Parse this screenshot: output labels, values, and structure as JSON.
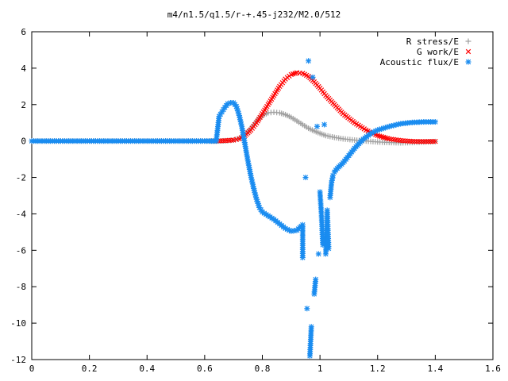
{
  "chart_data": {
    "type": "scatter",
    "title": "m4/n1.5/q1.5/r-+.45-j232/M2.0/512",
    "xlabel": "",
    "ylabel": "",
    "xlim": [
      0,
      1.6
    ],
    "ylim": [
      -12,
      6
    ],
    "x_ticks": [
      "0",
      "0.2",
      "0.4",
      "0.6",
      "0.8",
      "1",
      "1.2",
      "1.4",
      "1.6"
    ],
    "y_ticks": [
      "6",
      "4",
      "2",
      "0",
      "-2",
      "-4",
      "-6",
      "-8",
      "-10",
      "-12"
    ],
    "grid": false,
    "legend_position": "top-right",
    "series": [
      {
        "name": "R stress/E",
        "marker": "plus",
        "color": "#a0a0a0",
        "points": [
          [
            0.0,
            0.0
          ],
          [
            0.1,
            0.0
          ],
          [
            0.2,
            0.0
          ],
          [
            0.3,
            0.0
          ],
          [
            0.4,
            0.0
          ],
          [
            0.5,
            0.0
          ],
          [
            0.6,
            0.0
          ],
          [
            0.65,
            0.0
          ],
          [
            0.68,
            0.02
          ],
          [
            0.7,
            0.05
          ],
          [
            0.72,
            0.15
          ],
          [
            0.74,
            0.35
          ],
          [
            0.76,
            0.7
          ],
          [
            0.78,
            1.1
          ],
          [
            0.8,
            1.4
          ],
          [
            0.82,
            1.55
          ],
          [
            0.84,
            1.58
          ],
          [
            0.86,
            1.55
          ],
          [
            0.88,
            1.45
          ],
          [
            0.9,
            1.3
          ],
          [
            0.92,
            1.1
          ],
          [
            0.94,
            0.9
          ],
          [
            0.96,
            0.7
          ],
          [
            0.98,
            0.55
          ],
          [
            1.0,
            0.42
          ],
          [
            1.02,
            0.3
          ],
          [
            1.05,
            0.2
          ],
          [
            1.08,
            0.12
          ],
          [
            1.12,
            0.05
          ],
          [
            1.16,
            0.0
          ],
          [
            1.2,
            -0.05
          ],
          [
            1.24,
            -0.08
          ],
          [
            1.28,
            -0.1
          ],
          [
            1.32,
            -0.08
          ],
          [
            1.36,
            -0.05
          ],
          [
            1.4,
            -0.03
          ]
        ]
      },
      {
        "name": "G work/E",
        "marker": "cross",
        "color": "#ff0000",
        "points": [
          [
            0.64,
            0.0
          ],
          [
            0.67,
            0.02
          ],
          [
            0.7,
            0.05
          ],
          [
            0.72,
            0.12
          ],
          [
            0.74,
            0.3
          ],
          [
            0.76,
            0.6
          ],
          [
            0.78,
            1.0
          ],
          [
            0.8,
            1.5
          ],
          [
            0.82,
            2.0
          ],
          [
            0.84,
            2.5
          ],
          [
            0.86,
            3.0
          ],
          [
            0.88,
            3.4
          ],
          [
            0.9,
            3.65
          ],
          [
            0.92,
            3.75
          ],
          [
            0.94,
            3.72
          ],
          [
            0.96,
            3.55
          ],
          [
            0.98,
            3.25
          ],
          [
            1.0,
            2.9
          ],
          [
            1.02,
            2.5
          ],
          [
            1.05,
            2.0
          ],
          [
            1.08,
            1.5
          ],
          [
            1.12,
            1.0
          ],
          [
            1.16,
            0.6
          ],
          [
            1.2,
            0.3
          ],
          [
            1.24,
            0.12
          ],
          [
            1.28,
            0.03
          ],
          [
            1.32,
            -0.02
          ],
          [
            1.36,
            -0.03
          ],
          [
            1.4,
            -0.02
          ]
        ]
      },
      {
        "name": "Acoustic flux/E",
        "marker": "star",
        "color": "#1a8cf0",
        "points": [
          [
            0.0,
            0.0
          ],
          [
            0.1,
            0.0
          ],
          [
            0.2,
            0.0
          ],
          [
            0.3,
            0.0
          ],
          [
            0.4,
            0.0
          ],
          [
            0.5,
            0.0
          ],
          [
            0.6,
            0.0
          ],
          [
            0.64,
            0.0
          ],
          [
            0.65,
            1.35
          ],
          [
            0.66,
            1.6
          ],
          [
            0.67,
            1.85
          ],
          [
            0.68,
            2.05
          ],
          [
            0.69,
            2.1
          ],
          [
            0.7,
            2.1
          ],
          [
            0.71,
            1.9
          ],
          [
            0.72,
            1.4
          ],
          [
            0.73,
            0.7
          ],
          [
            0.74,
            -0.2
          ],
          [
            0.75,
            -1.1
          ],
          [
            0.76,
            -1.9
          ],
          [
            0.77,
            -2.6
          ],
          [
            0.78,
            -3.2
          ],
          [
            0.79,
            -3.65
          ],
          [
            0.8,
            -3.9
          ],
          [
            0.82,
            -4.1
          ],
          [
            0.84,
            -4.3
          ],
          [
            0.86,
            -4.55
          ],
          [
            0.88,
            -4.8
          ],
          [
            0.9,
            -4.95
          ],
          [
            0.92,
            -4.9
          ],
          [
            0.94,
            -4.6
          ],
          [
            0.94,
            -6.4
          ],
          [
            0.95,
            -2.0
          ],
          [
            0.955,
            -9.2
          ],
          [
            0.96,
            4.4
          ],
          [
            0.965,
            -11.8
          ],
          [
            0.97,
            -10.2
          ],
          [
            0.975,
            3.5
          ],
          [
            0.98,
            -8.4
          ],
          [
            0.985,
            -7.6
          ],
          [
            0.99,
            0.8
          ],
          [
            0.995,
            -6.2
          ],
          [
            1.0,
            -2.8
          ],
          [
            1.005,
            -4.0
          ],
          [
            1.01,
            -5.7
          ],
          [
            1.015,
            0.9
          ],
          [
            1.02,
            -6.2
          ],
          [
            1.025,
            -3.8
          ],
          [
            1.03,
            -5.9
          ],
          [
            1.035,
            -3.1
          ],
          [
            1.04,
            -2.3
          ],
          [
            1.045,
            -1.9
          ],
          [
            1.05,
            -1.7
          ],
          [
            1.06,
            -1.5
          ],
          [
            1.08,
            -1.2
          ],
          [
            1.1,
            -0.8
          ],
          [
            1.12,
            -0.4
          ],
          [
            1.15,
            0.1
          ],
          [
            1.18,
            0.45
          ],
          [
            1.2,
            0.6
          ],
          [
            1.24,
            0.8
          ],
          [
            1.28,
            0.95
          ],
          [
            1.32,
            1.02
          ],
          [
            1.36,
            1.05
          ],
          [
            1.4,
            1.05
          ]
        ]
      }
    ]
  }
}
